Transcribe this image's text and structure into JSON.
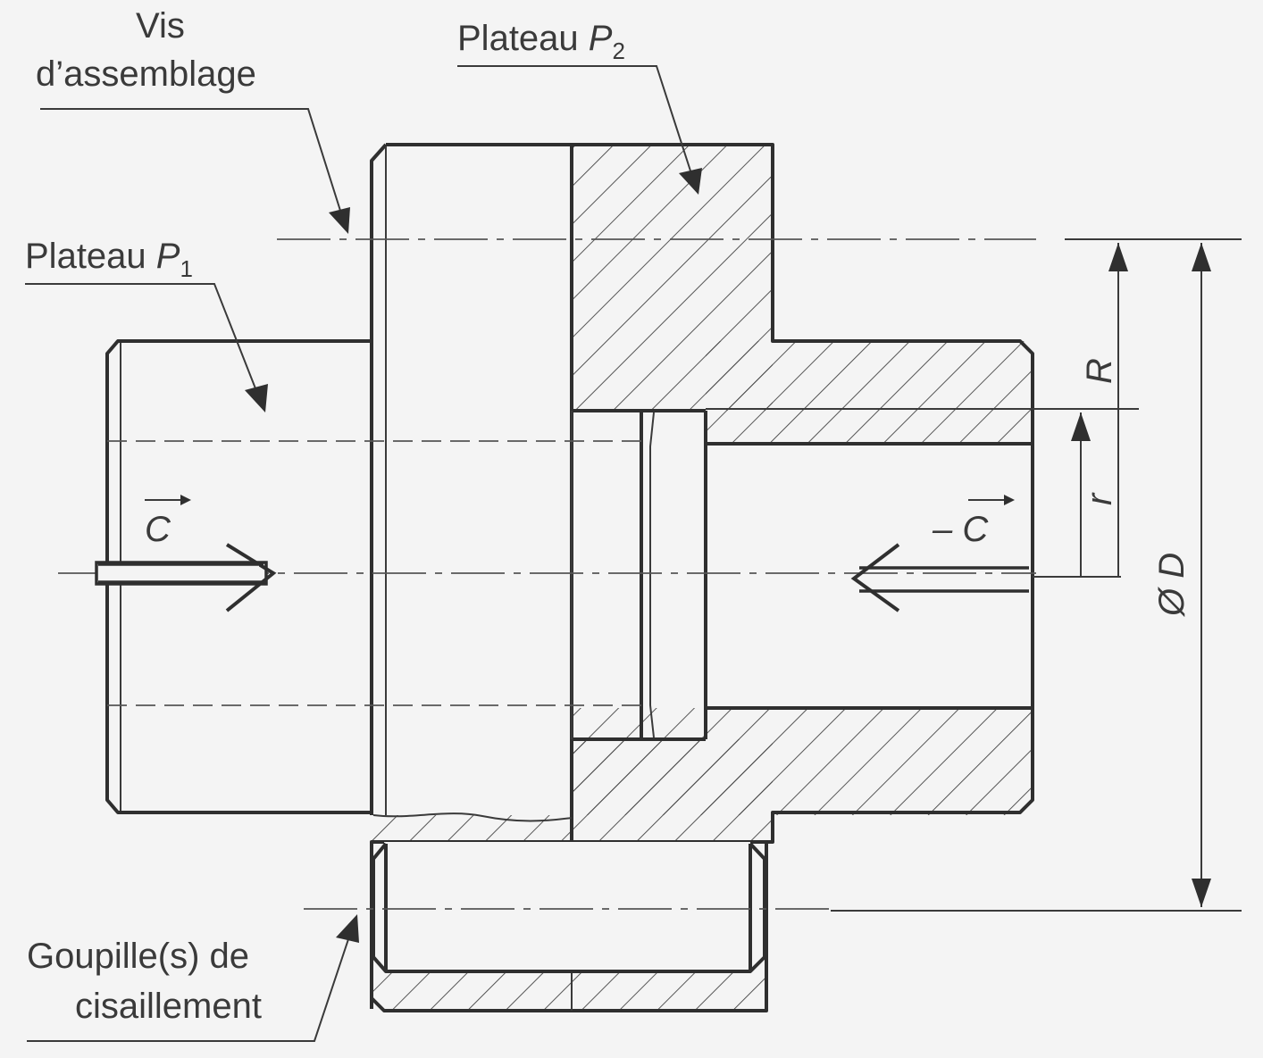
{
  "labels": {
    "vis_line1": "Vis",
    "vis_line2": "d’assemblage",
    "plateau_p2_text": "Plateau ",
    "plateau_p2_sym": "P",
    "plateau_p2_sub": "2",
    "plateau_p1_text": "Plateau ",
    "plateau_p1_sym": "P",
    "plateau_p1_sub": "1",
    "goupille_line1": "Goupille(s) de",
    "goupille_line2": "cisaillement",
    "torque_in": "C",
    "torque_out_sign": "– ",
    "torque_out": "C",
    "dim_R": "R",
    "dim_r": "r",
    "dim_D": "Ø D"
  },
  "colors": {
    "ink": "#2f2f2f",
    "paper": "#f4f4f4"
  }
}
